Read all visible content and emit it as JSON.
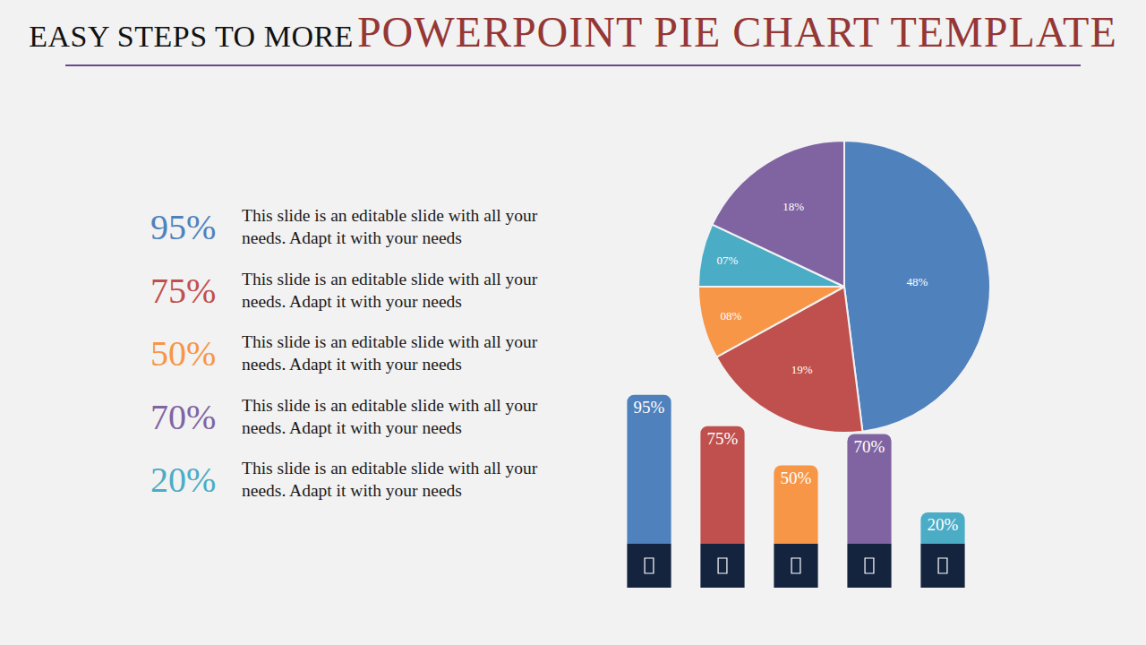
{
  "header": {
    "title": "EASY STEPS TO MORE",
    "title_highlight": "POWERPOINT PIE CHART TEMPLATE"
  },
  "items": [
    {
      "label": "95%",
      "text": "This slide is an editable slide with all your needs. Adapt it with your needs",
      "color": "#4f81bd"
    },
    {
      "label": "75%",
      "text": "This slide is an editable slide with all your needs. Adapt it with your needs",
      "color": "#c0504d"
    },
    {
      "label": "50%",
      "text": "This slide is an editable slide with all your needs. Adapt it with your needs",
      "color": "#f79646"
    },
    {
      "label": "70%",
      "text": "This slide is an editable slide with all your needs. Adapt it with your needs",
      "color": "#8064a2"
    },
    {
      "label": "20%",
      "text": "This slide is an editable slide with all your needs. Adapt it with your needs",
      "color": "#4bacc6"
    }
  ],
  "chart_data": [
    {
      "type": "pie",
      "values": [
        48,
        19,
        8,
        7,
        18
      ],
      "value_labels": [
        "48%",
        "19%",
        "08%",
        "07%",
        "18%"
      ],
      "colors": [
        "#4f81bd",
        "#c0504d",
        "#f79646",
        "#4bacc6",
        "#8064a2"
      ],
      "data_labels": true
    },
    {
      "type": "bar",
      "categories": [
        null,
        null,
        null,
        null,
        null
      ],
      "values": [
        95,
        75,
        50,
        70,
        20
      ],
      "value_labels": [
        "95%",
        "75%",
        "50%",
        "70%",
        "20%"
      ],
      "colors": [
        "#4f81bd",
        "#c0504d",
        "#f79646",
        "#8064a2",
        "#4bacc6"
      ],
      "ylim": [
        0,
        100
      ],
      "data_labels": true,
      "tick_labels": false
    }
  ]
}
